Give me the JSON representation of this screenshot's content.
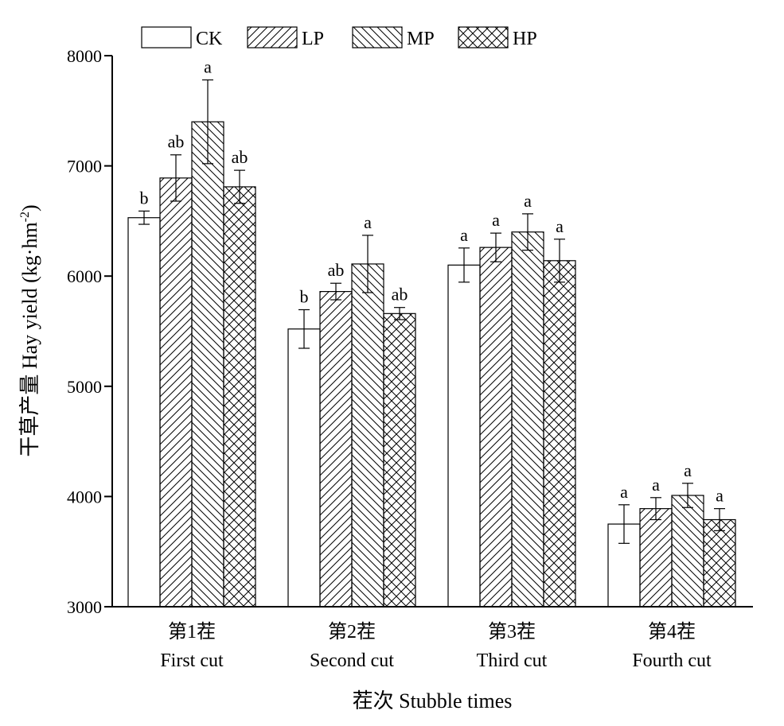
{
  "chart_data": {
    "type": "bar",
    "title": "",
    "xlabel": "茬次 Stubble times",
    "ylabel": "干草产量 Hay yield (kg·hm",
    "ylabel_sup": "-2",
    "ylabel_close": ")",
    "ylim": [
      3000,
      8000
    ],
    "yticks": [
      3000,
      4000,
      5000,
      6000,
      7000,
      8000
    ],
    "categories": [
      {
        "cn": "第1茬",
        "en": "First cut"
      },
      {
        "cn": "第2茬",
        "en": "Second cut"
      },
      {
        "cn": "第3茬",
        "en": "Third cut"
      },
      {
        "cn": "第4茬",
        "en": "Fourth cut"
      }
    ],
    "series": [
      {
        "name": "CK",
        "pattern": "none",
        "values": [
          6530,
          5520,
          6100,
          3750
        ],
        "errors": [
          60,
          175,
          155,
          175
        ],
        "labels": [
          "b",
          "b",
          "a",
          "a"
        ]
      },
      {
        "name": "LP",
        "pattern": "forward-diagonal",
        "values": [
          6890,
          5860,
          6260,
          3890
        ],
        "errors": [
          210,
          75,
          130,
          100
        ],
        "labels": [
          "ab",
          "ab",
          "a",
          "a"
        ]
      },
      {
        "name": "MP",
        "pattern": "back-diagonal",
        "values": [
          7400,
          6110,
          6400,
          4010
        ],
        "errors": [
          380,
          260,
          165,
          110
        ],
        "labels": [
          "a",
          "a",
          "a",
          "a"
        ]
      },
      {
        "name": "HP",
        "pattern": "crosshatch",
        "values": [
          6810,
          5660,
          6140,
          3790
        ],
        "errors": [
          150,
          55,
          195,
          100
        ],
        "labels": [
          "ab",
          "ab",
          "a",
          "a"
        ]
      }
    ],
    "legend": {
      "placement": "top-left",
      "orientation": "horizontal"
    },
    "grid": false,
    "colors": {
      "bar_fill": "#ffffff",
      "bar_stroke": "#000000",
      "hatch": "#000000"
    }
  }
}
